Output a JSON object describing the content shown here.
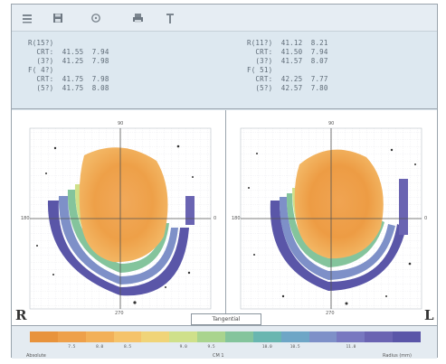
{
  "toolbar": {
    "icons": [
      "list-icon",
      "save-icon",
      "target-icon",
      "print-icon",
      "pin-icon"
    ]
  },
  "readout": {
    "left": [
      "R(15?)",
      "  CRT:  41.55  7.94",
      "  (3?)  41.25  7.98",
      "F( 4?)",
      "  CRT:  41.75  7.98",
      "  (5?)  41.75  8.08"
    ],
    "right": [
      "R(11?)  41.12  8.21",
      "  CRT:  41.50  7.94",
      "  (3?)  41.57  8.07",
      "F( 51)",
      "  CRT:  42.25  7.77",
      "  (5?)  42.57  7.80"
    ]
  },
  "maps": {
    "left_eye_label": "R",
    "right_eye_label": "L",
    "center_tab": "Tangential",
    "left_axes": {
      "top": "90",
      "bottom": "270",
      "left": "180",
      "right": "0"
    },
    "right_axes": {
      "top": "90",
      "bottom": "270",
      "left": "180",
      "right": "0"
    }
  },
  "legend": {
    "colors": [
      "#e8933c",
      "#eea04a",
      "#f2b058",
      "#f5c36a",
      "#f0d478",
      "#cfe08a",
      "#a9d48e",
      "#84c49c",
      "#69b6b0",
      "#6ea6c6",
      "#7e90c8",
      "#7878c0",
      "#6a64b2",
      "#5a56a8"
    ],
    "values": [
      "",
      "7.5",
      "8.0",
      "8.5",
      "",
      "9.0",
      "9.5",
      "",
      "10.0",
      "10.5",
      "",
      "11.0",
      "",
      ""
    ],
    "foot_left": "Absolute",
    "foot_center": "CM 1",
    "foot_right": "Radius (mm)"
  }
}
